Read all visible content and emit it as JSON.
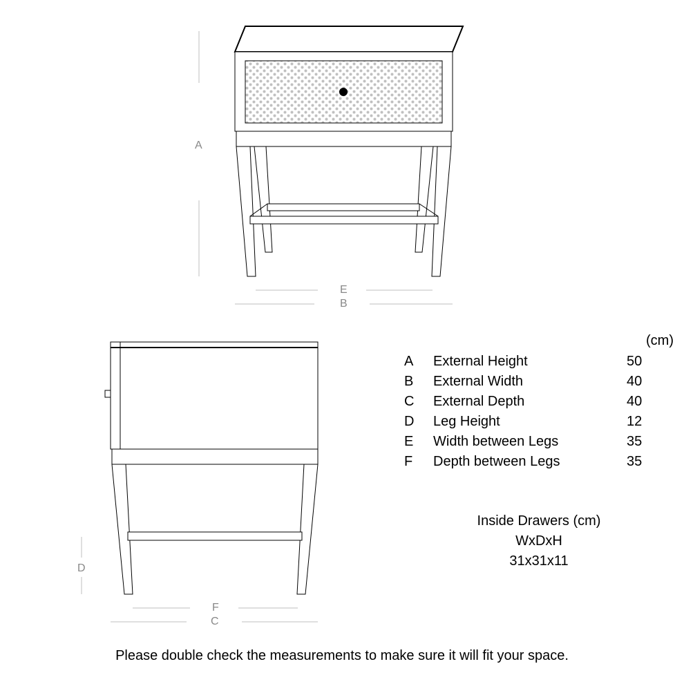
{
  "diagram": {
    "type": "technical-drawing",
    "stroke_color": "#000000",
    "guide_color": "#bfbfbf",
    "guide_text_color": "#888888",
    "pattern_dot_color": "#c0c0c0",
    "background_color": "#ffffff",
    "stroke_width_main": 1,
    "stroke_width_top": 2,
    "front_view": {
      "letters": {
        "height": "A",
        "width": "B",
        "inner_width": "E"
      }
    },
    "side_view": {
      "letters": {
        "depth": "C",
        "leg_height": "D",
        "inner_depth": "F"
      }
    }
  },
  "dimensions": {
    "unit_header": "(cm)",
    "rows": [
      {
        "letter": "A",
        "label": "External Height",
        "value": "50"
      },
      {
        "letter": "B",
        "label": "External Width",
        "value": "40"
      },
      {
        "letter": "C",
        "label": "External Depth",
        "value": "40"
      },
      {
        "letter": "D",
        "label": "Leg Height",
        "value": "12"
      },
      {
        "letter": "E",
        "label": "Width between Legs",
        "value": "35"
      },
      {
        "letter": "F",
        "label": "Depth between Legs",
        "value": "35"
      }
    ]
  },
  "drawers": {
    "title": "Inside Drawers (cm)",
    "subtitle": "WxDxH",
    "value": "31x31x11"
  },
  "footer": "Please double check the measurements to make sure it will fit your space."
}
